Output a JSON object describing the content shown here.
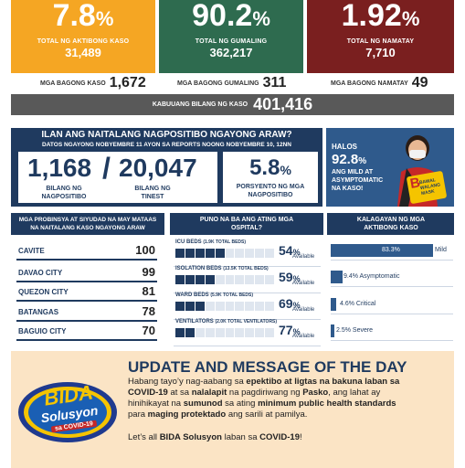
{
  "colors": {
    "orange": "#f5a623",
    "green": "#2e6b4f",
    "maroon": "#7a1f1f",
    "navy": "#1f3a5f",
    "gray": "#595959",
    "peach": "#fbe4c5"
  },
  "top": [
    {
      "value": "7.8",
      "unit": "%",
      "label": "TOTAL NG AKTIBONG KASO",
      "count": "31,489"
    },
    {
      "value": "90.2",
      "unit": "%",
      "label": "TOTAL NG GUMALING",
      "count": "362,217"
    },
    {
      "value": "1.92",
      "unit": "%",
      "label": "TOTAL NG NAMATAY",
      "count": "7,710"
    }
  ],
  "new_cases": [
    {
      "label": "MGA BAGONG KASO",
      "value": "1,672"
    },
    {
      "label": "MGA BAGONG GUMALING",
      "value": "311"
    },
    {
      "label": "MGA BAGONG NAMATAY",
      "value": "49"
    }
  ],
  "total": {
    "label": "KABUUANG BILANG NG KASO",
    "value": "401,416"
  },
  "positivity": {
    "title": "ILAN ANG NAITALANG NAGPOSITIBO NGAYONG ARAW?",
    "subtitle": "DATOS NGAYONG NOBYEMBRE 11 AYON SA REPORTS NOONG NOBYEMBRE 10, 12NN",
    "positive": "1,168",
    "positive_label": "BILANG NG NAGPOSITIBO",
    "tested": "20,047",
    "tested_label": "BILANG NG TINEST",
    "rate": "5.8",
    "rate_unit": "%",
    "rate_label": "PORSYENTO NG MGA NAGPOSITIBO"
  },
  "mild_panel": {
    "prefix": "HALOS",
    "value": "92.8",
    "unit": "%",
    "text": "ANG MILD AT ASYMPTOMATIC NA KASO!",
    "sign_letter": "B",
    "sign_text": "BAWAL WALANG MASK"
  },
  "provinces": {
    "title": "MGA PROBINSYA AT SIYUDAD NA MAY MATAAS NA NAITALANG KASO NGAYONG ARAW",
    "items": [
      {
        "name": "CAVITE",
        "count": "100"
      },
      {
        "name": "DAVAO CITY",
        "count": "99"
      },
      {
        "name": "QUEZON CITY",
        "count": "81"
      },
      {
        "name": "BATANGAS",
        "count": "78"
      },
      {
        "name": "BAGUIO CITY",
        "count": "70"
      }
    ]
  },
  "hospitals": {
    "title": "PUNO NA BA ANG ATING MGA OSPITAL?",
    "available_label": "Available",
    "items": [
      {
        "title": "ICU BEDS",
        "sub": "(1.9K TOTAL BEDS)",
        "value": "54",
        "unit": "%",
        "fill": 0.46
      },
      {
        "title": "ISOLATION BEDS",
        "sub": "(13.5K TOTAL BEDS)",
        "value": "59",
        "unit": "%",
        "fill": 0.41
      },
      {
        "title": "WARD BEDS",
        "sub": "(5.9K TOTAL BEDS)",
        "value": "69",
        "unit": "%",
        "fill": 0.31
      },
      {
        "title": "VENTILATORS",
        "sub": "(2.0K TOTAL VENTILATORS)",
        "value": "77",
        "unit": "%",
        "fill": 0.23
      }
    ]
  },
  "severity": {
    "title": "KALAGAYAN NG MGA AKTIBONG KASO",
    "items": [
      {
        "value": 83.3,
        "label": "83.3%",
        "name": "Mild"
      },
      {
        "value": 9.4,
        "label": "9.4% Asymptomatic"
      },
      {
        "value": 4.6,
        "label": "4.6% Critical"
      },
      {
        "value": 2.5,
        "label": "2.5% Severe"
      }
    ]
  },
  "message": {
    "title": "UPDATE AND MESSAGE OF THE DAY",
    "line1": "Habang tayo’y nag-aabang sa",
    "line1b": "epektibo at ligtas na bakuna laban sa",
    "line2b": "COVID-19",
    "line2": "at sa",
    "line2c": "nalalapit",
    "line2d": "na pagdiriwang ng",
    "line2e": "Pasko",
    "line2f": ", ang lahat ay",
    "line3": "hinihikayat na",
    "line3b": "sumunod",
    "line3c": "sa ating",
    "line3d": "minimum public health standards",
    "line4": "para",
    "line4b": "maging protektado",
    "line4c": "ang sarili at pamilya.",
    "closing_a": "Let’s all",
    "closing_b": "BIDA Solusyon",
    "closing_c": "laban sa",
    "closing_d": "COVID-19",
    "closing_e": "!"
  },
  "logo": {
    "line1": "BIDA",
    "line2": "Solusyon",
    "line3": "sa COVID-19"
  }
}
